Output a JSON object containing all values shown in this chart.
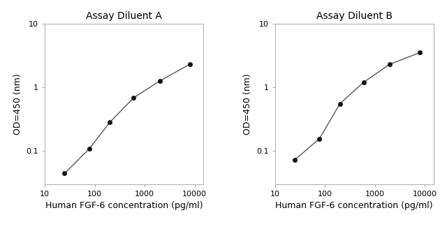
{
  "panel_A": {
    "title": "Assay Diluent A",
    "x": [
      25,
      78,
      200,
      600,
      2000,
      8000
    ],
    "y": [
      0.044,
      0.108,
      0.28,
      0.68,
      1.25,
      2.3
    ],
    "xlabel": "Human FGF-6 concentration (pg/ml)",
    "ylabel": "OD=450 (nm)",
    "xlim": [
      10,
      15000
    ],
    "ylim": [
      0.03,
      10
    ]
  },
  "panel_B": {
    "title": "Assay Diluent B",
    "x": [
      25,
      78,
      200,
      600,
      2000,
      8000
    ],
    "y": [
      0.072,
      0.155,
      0.55,
      1.2,
      2.3,
      3.5
    ],
    "xlabel": "Human FGF-6 concentration (pg/ml)",
    "ylabel": "OD=450 (nm)",
    "xlim": [
      10,
      15000
    ],
    "ylim": [
      0.03,
      10
    ]
  },
  "xticks": [
    10,
    100,
    1000,
    10000
  ],
  "xtick_labels": [
    "10",
    "100",
    "1000",
    "10000"
  ],
  "yticks": [
    0.1,
    1,
    10
  ],
  "ytick_labels": [
    "0.1",
    "1",
    "10"
  ],
  "line_color": "#555555",
  "marker_color": "#111111",
  "background_color": "#ffffff",
  "spine_color": "#aaaaaa",
  "title_fontsize": 10,
  "label_fontsize": 9,
  "tick_fontsize": 8
}
